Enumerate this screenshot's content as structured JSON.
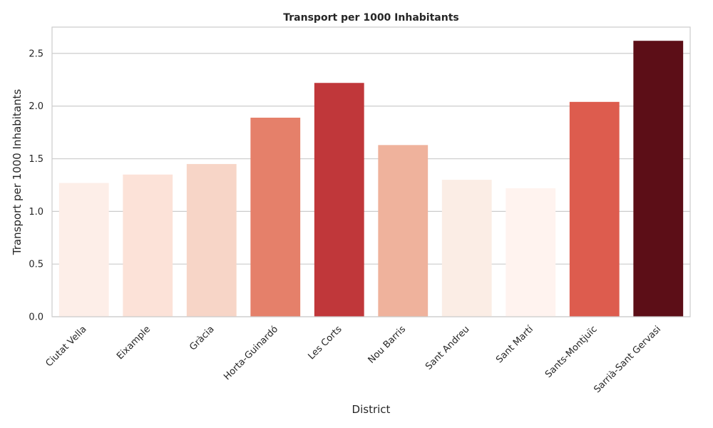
{
  "chart_data": {
    "type": "bar",
    "title": "Transport per 1000 Inhabitants",
    "xlabel": "District",
    "ylabel": "Transport per 1000 Inhabitants",
    "categories": [
      "Ciutat Vella",
      "Eixample",
      "Gràcia",
      "Horta-Guinardó",
      "Les Corts",
      "Nou Barris",
      "Sant Andreu",
      "Sant Martí",
      "Sants-Montjuïc",
      "Sarrià-Sant Gervasi"
    ],
    "values": [
      1.27,
      1.35,
      1.45,
      1.89,
      2.22,
      1.63,
      1.3,
      1.22,
      2.04,
      2.62
    ],
    "colors": [
      "#fdeee8",
      "#fce2d8",
      "#f7d5c7",
      "#e5806a",
      "#c0373a",
      "#efb29c",
      "#fbede5",
      "#fff3ef",
      "#dd5c4e",
      "#5c0e17"
    ],
    "ylim": [
      0,
      2.75
    ],
    "yticks": [
      "0.0",
      "0.5",
      "1.0",
      "1.5",
      "2.0",
      "2.5"
    ],
    "grid": true,
    "legend": "none"
  }
}
